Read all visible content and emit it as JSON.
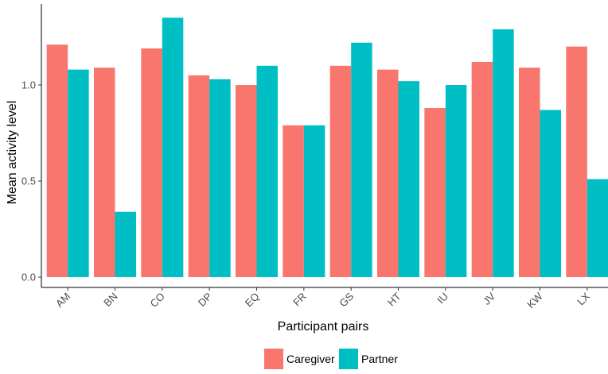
{
  "chart_data": {
    "type": "bar",
    "xlabel": "Participant pairs",
    "ylabel": "Mean activity level",
    "ylim": [
      0,
      1.37
    ],
    "yticks": [
      "0.0",
      "0.5",
      "1.0"
    ],
    "grid": false,
    "legend_position": "bottom",
    "categories": [
      "AM",
      "BN",
      "CO",
      "DP",
      "EQ",
      "FR",
      "GS",
      "HT",
      "IU",
      "JV",
      "KW",
      "LX"
    ],
    "series": [
      {
        "name": "Caregiver",
        "color": "#F8766D",
        "values": [
          1.21,
          1.09,
          1.19,
          1.05,
          1.0,
          0.79,
          1.1,
          1.08,
          0.88,
          1.12,
          1.09,
          1.2
        ]
      },
      {
        "name": "Partner",
        "color": "#00BFC4",
        "values": [
          1.08,
          0.34,
          1.35,
          1.03,
          1.1,
          0.79,
          1.22,
          1.02,
          1.0,
          1.29,
          0.87,
          0.51
        ]
      }
    ]
  }
}
